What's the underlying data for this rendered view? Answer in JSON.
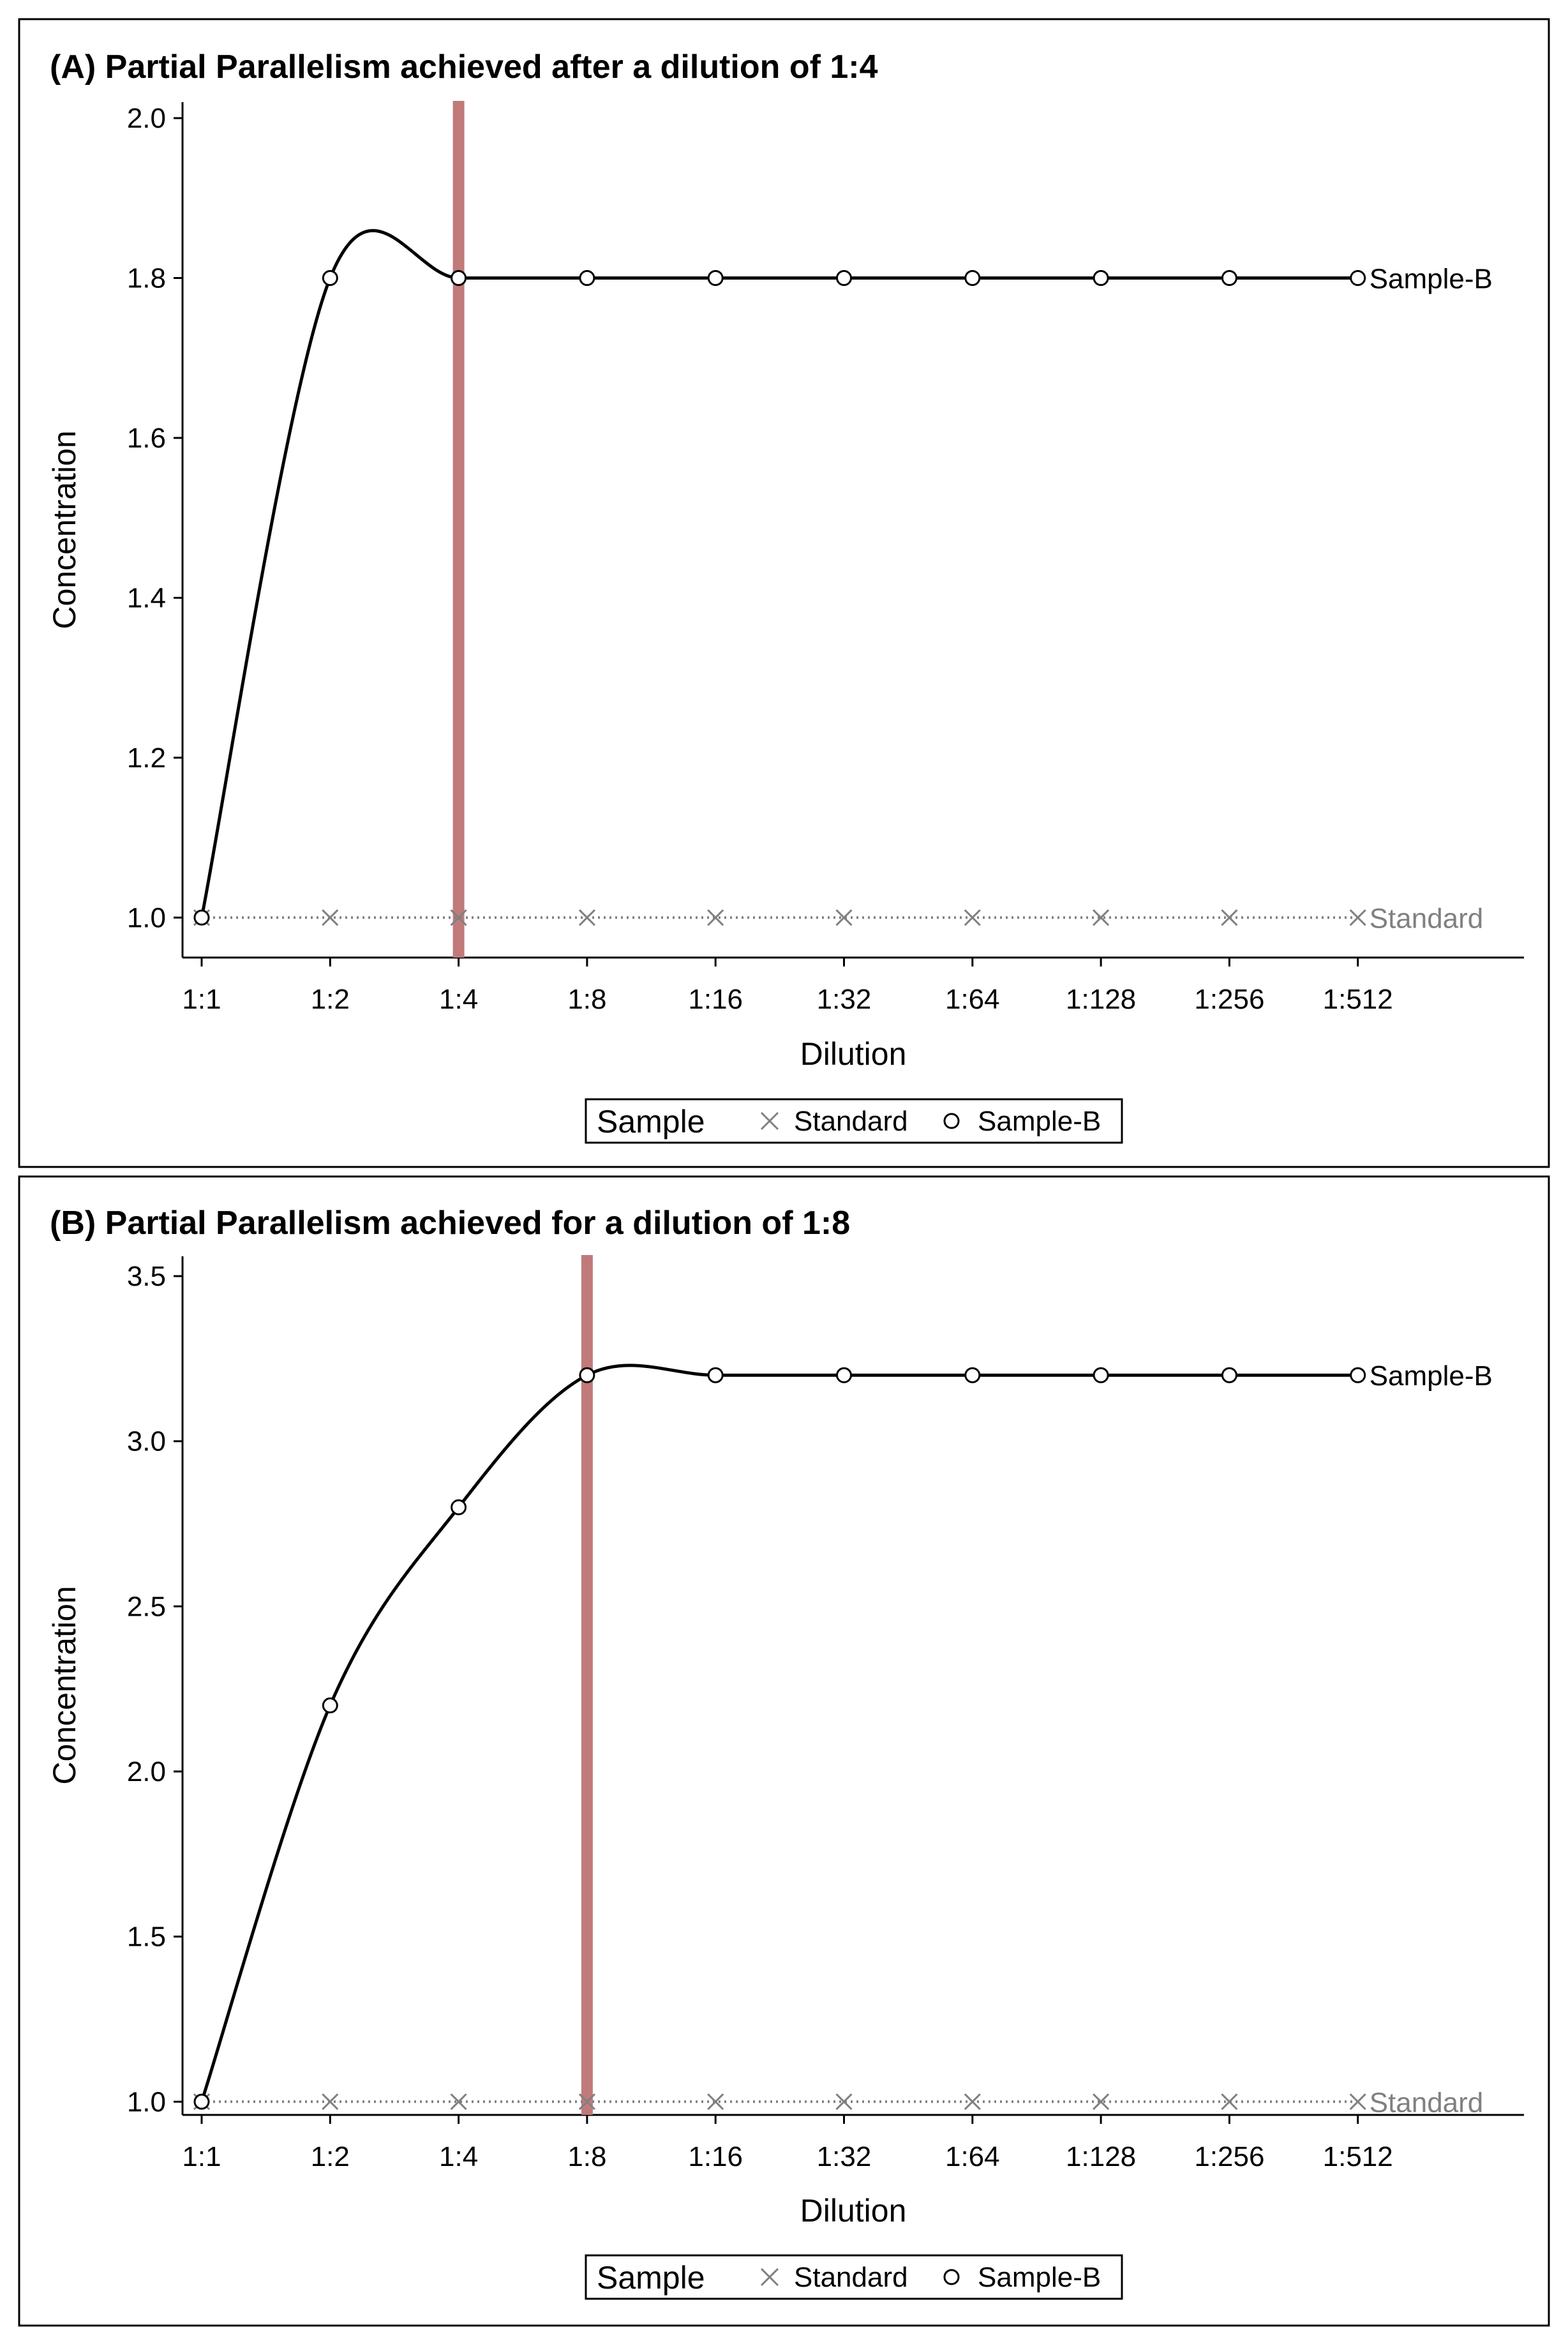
{
  "chart_data": [
    {
      "type": "line",
      "title": "(A) Partial Parallelism achieved after a dilution of 1:4",
      "xlabel": "Dilution",
      "ylabel": "Concentration",
      "categories": [
        "1:1",
        "1:2",
        "1:4",
        "1:8",
        "1:16",
        "1:32",
        "1:64",
        "1:128",
        "1:256",
        "1:512"
      ],
      "ylim": [
        0.95,
        2.02
      ],
      "yticks": [
        "1.0",
        "1.2",
        "1.4",
        "1.6",
        "1.8",
        "2.0"
      ],
      "reference_line_at": "1:4",
      "reference_line_color": "#c07a7a",
      "series": [
        {
          "name": "Standard",
          "marker": "x",
          "style": "dotted",
          "color": "#808080",
          "values": [
            1.0,
            1.0,
            1.0,
            1.0,
            1.0,
            1.0,
            1.0,
            1.0,
            1.0,
            1.0
          ],
          "end_label": "Standard"
        },
        {
          "name": "Sample-B",
          "marker": "o",
          "style": "solid",
          "color": "#000000",
          "values": [
            1.0,
            1.8,
            1.8,
            1.8,
            1.8,
            1.8,
            1.8,
            1.8,
            1.8,
            1.8
          ],
          "end_label": "Sample-B"
        }
      ],
      "legend": {
        "title": "Sample",
        "items": [
          "Standard",
          "Sample-B"
        ],
        "position": "bottom-center"
      }
    },
    {
      "type": "line",
      "title": "(B) Partial Parallelism achieved for a dilution of 1:8",
      "xlabel": "Dilution",
      "ylabel": "Concentration",
      "categories": [
        "1:1",
        "1:2",
        "1:4",
        "1:8",
        "1:16",
        "1:32",
        "1:64",
        "1:128",
        "1:256",
        "1:512"
      ],
      "ylim": [
        0.96,
        3.56
      ],
      "yticks": [
        "1.0",
        "1.5",
        "2.0",
        "2.5",
        "3.0",
        "3.5"
      ],
      "reference_line_at": "1:8",
      "reference_line_color": "#c07a7a",
      "series": [
        {
          "name": "Standard",
          "marker": "x",
          "style": "dotted",
          "color": "#808080",
          "values": [
            1.0,
            1.0,
            1.0,
            1.0,
            1.0,
            1.0,
            1.0,
            1.0,
            1.0,
            1.0
          ],
          "end_label": "Standard"
        },
        {
          "name": "Sample-B",
          "marker": "o",
          "style": "solid",
          "color": "#000000",
          "values": [
            1.0,
            2.2,
            2.8,
            3.2,
            3.2,
            3.2,
            3.2,
            3.2,
            3.2,
            3.2
          ],
          "end_label": "Sample-B"
        }
      ],
      "legend": {
        "title": "Sample",
        "items": [
          "Standard",
          "Sample-B"
        ],
        "position": "bottom-center"
      }
    }
  ]
}
